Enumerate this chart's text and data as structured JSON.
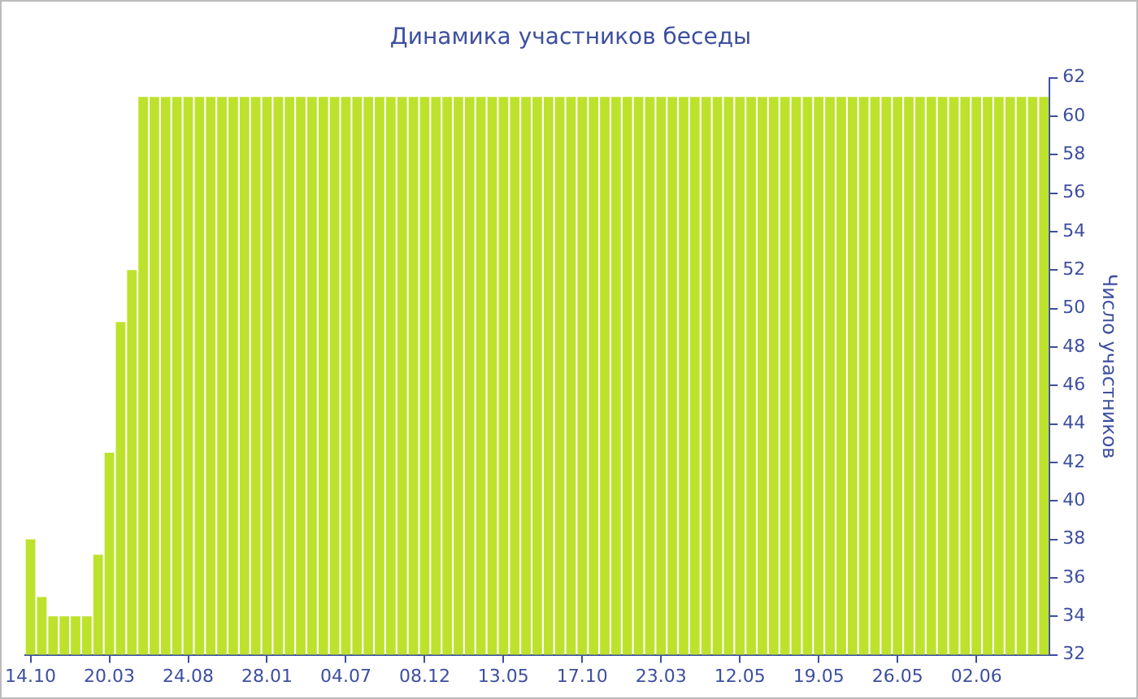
{
  "chart_data": {
    "type": "bar",
    "title": "Динамика участников беседы",
    "ylabel": "Число участников",
    "categories": [
      "14.10",
      null,
      null,
      null,
      null,
      null,
      null,
      "20.03",
      null,
      null,
      null,
      null,
      null,
      null,
      "24.08",
      null,
      null,
      null,
      null,
      null,
      null,
      "28.01",
      null,
      null,
      null,
      null,
      null,
      null,
      "04.07",
      null,
      null,
      null,
      null,
      null,
      null,
      "08.12",
      null,
      null,
      null,
      null,
      null,
      null,
      "13.05",
      null,
      null,
      null,
      null,
      null,
      null,
      "17.10",
      null,
      null,
      null,
      null,
      null,
      null,
      "23.03",
      null,
      null,
      null,
      null,
      null,
      null,
      "12.05",
      null,
      null,
      null,
      null,
      null,
      null,
      "19.05",
      null,
      null,
      null,
      null,
      null,
      null,
      "26.05",
      null,
      null,
      null,
      null,
      null,
      null,
      "02.06",
      null,
      null,
      null,
      null,
      null,
      null
    ],
    "values": [
      38,
      35,
      34,
      34,
      34,
      34,
      37.2,
      42.5,
      49.3,
      52,
      61,
      61,
      61,
      61,
      61,
      61,
      61,
      61,
      61,
      61,
      61,
      61,
      61,
      61,
      61,
      61,
      61,
      61,
      61,
      61,
      61,
      61,
      61,
      61,
      61,
      61,
      61,
      61,
      61,
      61,
      61,
      61,
      61,
      61,
      61,
      61,
      61,
      61,
      61,
      61,
      61,
      61,
      61,
      61,
      61,
      61,
      61,
      61,
      61,
      61,
      61,
      61,
      61,
      61,
      61,
      61,
      61,
      61,
      61,
      61,
      61,
      61,
      61,
      61,
      61,
      61,
      61,
      61,
      61,
      61,
      61,
      61,
      61,
      61,
      61,
      61,
      61,
      61,
      61,
      61,
      61
    ],
    "color": "#bde22c",
    "ylim": [
      32,
      62
    ],
    "yticks": [
      32,
      34,
      36,
      38,
      40,
      42,
      44,
      46,
      48,
      50,
      52,
      54,
      56,
      58,
      60,
      62
    ]
  }
}
